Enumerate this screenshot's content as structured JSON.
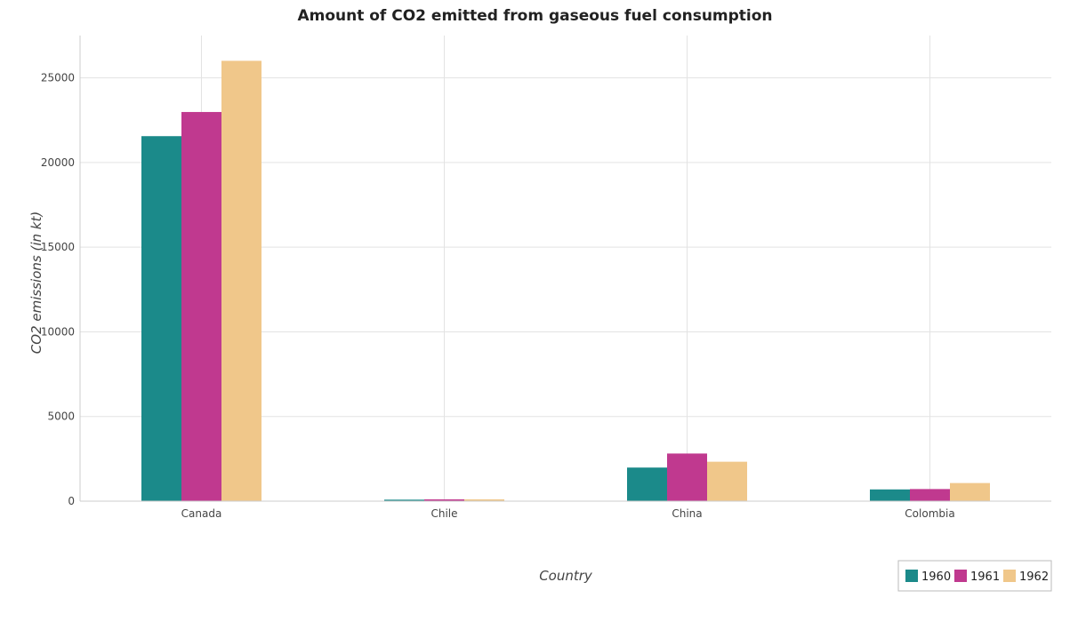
{
  "chart_data": {
    "type": "bar",
    "title": "Amount of CO2 emitted from gaseous fuel consumption",
    "xlabel": "Country",
    "ylabel": "CO2 emissions (in kt)",
    "categories": [
      "Canada",
      "Chile",
      "China",
      "Colombia"
    ],
    "series": [
      {
        "name": "1960",
        "color": "#1b8a8a",
        "values": [
          21558,
          88,
          1984,
          693
        ]
      },
      {
        "name": "1961",
        "color": "#c0398f",
        "values": [
          22984,
          106,
          2813,
          715
        ]
      },
      {
        "name": "1962",
        "color": "#f0c78a",
        "values": [
          26007,
          106,
          2328,
          1070
        ]
      }
    ],
    "ylim": [
      0,
      27500
    ],
    "yticks": [
      0,
      5000,
      10000,
      15000,
      20000,
      25000
    ],
    "ytick_labels": [
      "0",
      "5000",
      "10000",
      "15000",
      "20000",
      "25000"
    ],
    "grid": true,
    "legend_position": "bottom-right"
  }
}
